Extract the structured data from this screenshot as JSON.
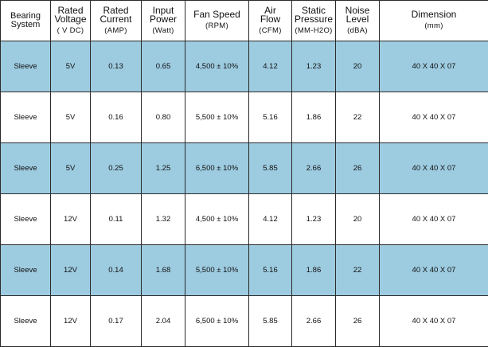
{
  "headers": [
    {
      "line1": "Bearing",
      "line2": "System",
      "unit": ""
    },
    {
      "line1": "Rated",
      "line2": "Voltage",
      "unit": "( V DC)"
    },
    {
      "line1": "Rated",
      "line2": "Current",
      "unit": "(AMP)"
    },
    {
      "line1": "Input",
      "line2": "Power",
      "unit": "(Watt)"
    },
    {
      "line1": "Fan Speed",
      "line2": "",
      "unit": "(RPM)"
    },
    {
      "line1": "Air",
      "line2": "Flow",
      "unit": "(CFM)"
    },
    {
      "line1": "Static",
      "line2": "Pressure",
      "unit": "(MM-H2O)"
    },
    {
      "line1": "Noise",
      "line2": "Level",
      "unit": "(dBA)"
    },
    {
      "line1": "Dimension",
      "line2": "",
      "unit": "(mm)"
    }
  ],
  "rows": [
    {
      "bearing": "Sleeve",
      "voltage": "5V",
      "current": "0.13",
      "power": "0.65",
      "speed": "4,500 ± 10%",
      "airflow": "4.12",
      "pressure": "1.23",
      "noise": "20",
      "dimension": "40 X 40 X 07"
    },
    {
      "bearing": "Sleeve",
      "voltage": "5V",
      "current": "0.16",
      "power": "0.80",
      "speed": "5,500 ± 10%",
      "airflow": "5.16",
      "pressure": "1.86",
      "noise": "22",
      "dimension": "40 X 40 X 07"
    },
    {
      "bearing": "Sleeve",
      "voltage": "5V",
      "current": "0.25",
      "power": "1.25",
      "speed": "6,500 ± 10%",
      "airflow": "5.85",
      "pressure": "2.66",
      "noise": "26",
      "dimension": "40 X 40 X 07"
    },
    {
      "bearing": "Sleeve",
      "voltage": "12V",
      "current": "0.11",
      "power": "1.32",
      "speed": "4,500 ± 10%",
      "airflow": "4.12",
      "pressure": "1.23",
      "noise": "20",
      "dimension": "40 X 40 X 07"
    },
    {
      "bearing": "Sleeve",
      "voltage": "12V",
      "current": "0.14",
      "power": "1.68",
      "speed": "5,500 ± 10%",
      "airflow": "5.16",
      "pressure": "1.86",
      "noise": "22",
      "dimension": "40 X 40 X 07"
    },
    {
      "bearing": "Sleeve",
      "voltage": "12V",
      "current": "0.17",
      "power": "2.04",
      "speed": "6,500 ± 10%",
      "airflow": "5.85",
      "pressure": "2.66",
      "noise": "26",
      "dimension": "40 X 40 X 07"
    }
  ],
  "colors": {
    "shaded_row": "#9dcbe0",
    "plain_row": "#ffffff",
    "border": "#2b2b2b"
  }
}
